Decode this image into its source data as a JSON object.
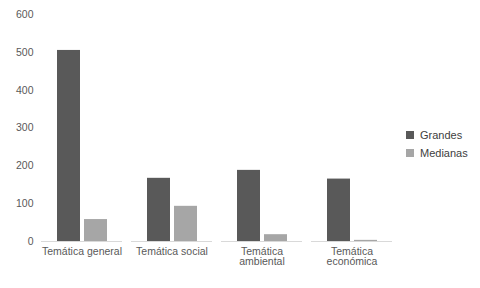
{
  "chart_data": {
    "type": "bar",
    "categories": [
      "Temática general",
      "Temática social",
      "Temática ambiental",
      "Temática económica"
    ],
    "series": [
      {
        "name": "Grandes",
        "color": "#595959",
        "values": [
          505,
          167,
          188,
          165
        ]
      },
      {
        "name": "Medianas",
        "color": "#a6a6a6",
        "values": [
          58,
          93,
          18,
          3
        ]
      }
    ],
    "ylim": [
      0,
      600
    ],
    "yticks": [
      0,
      100,
      200,
      300,
      400,
      500,
      600
    ],
    "grid": false,
    "legend": "right"
  }
}
